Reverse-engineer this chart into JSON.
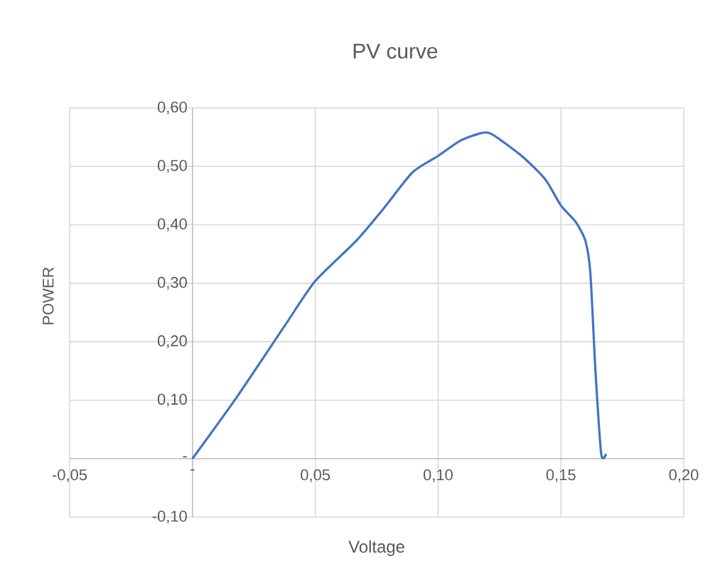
{
  "chart_data": {
    "type": "line",
    "title": "PV curve",
    "xlabel": "Voltage",
    "ylabel": "POWER",
    "x": [
      0,
      0.018,
      0.0375,
      0.05,
      0.0665,
      0.078,
      0.0896,
      0.1,
      0.109,
      0.1176,
      0.122,
      0.134,
      0.1436,
      0.15,
      0.156,
      0.16,
      0.162,
      0.164,
      0.1664,
      0.1684
    ],
    "series": [
      {
        "color": "#4472c4",
        "values": [
          0,
          0.105,
          0.227,
          0.304,
          0.372,
          0.429,
          0.49,
          0.518,
          0.544,
          0.557,
          0.555,
          0.518,
          0.478,
          0.433,
          0.405,
          0.372,
          0.316,
          0.154,
          0.008,
          0.008
        ]
      }
    ],
    "xlim": [
      -0.05,
      0.2
    ],
    "ylim": [
      -0.1,
      0.6
    ],
    "xticks": [
      {
        "value": -0.05,
        "label": "-0,05"
      },
      {
        "value": 0,
        "label": "-"
      },
      {
        "value": 0.05,
        "label": "0,05"
      },
      {
        "value": 0.1,
        "label": "0,10"
      },
      {
        "value": 0.15,
        "label": "0,15"
      },
      {
        "value": 0.2,
        "label": "0,20"
      }
    ],
    "yticks": [
      {
        "value": -0.1,
        "label": "-0,10"
      },
      {
        "value": 0,
        "label": "-"
      },
      {
        "value": 0.1,
        "label": "0,10"
      },
      {
        "value": 0.2,
        "label": "0,20"
      },
      {
        "value": 0.3,
        "label": "0,30"
      },
      {
        "value": 0.4,
        "label": "0,40"
      },
      {
        "value": 0.5,
        "label": "0,50"
      },
      {
        "value": 0.6,
        "label": "0,60"
      }
    ],
    "grid": true,
    "marker": "none",
    "line_style": "solid"
  }
}
